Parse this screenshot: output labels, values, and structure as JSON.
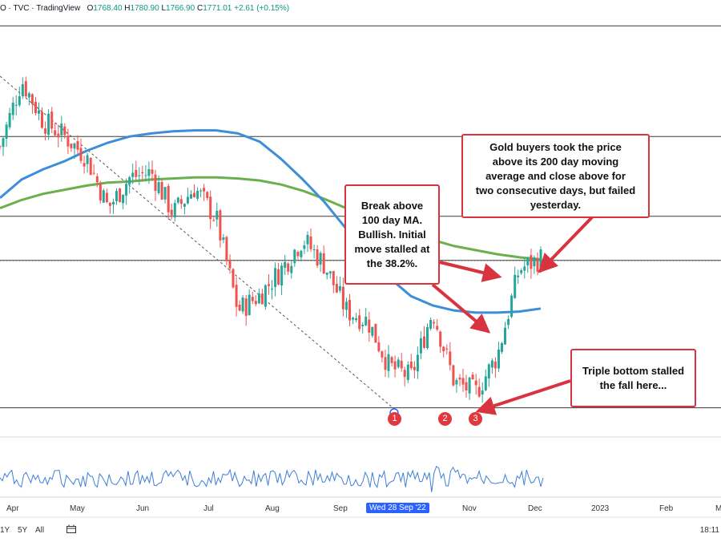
{
  "legend": {
    "prefix": "O · TVC · TradingView",
    "o_label": "O",
    "o_val": "1768.40",
    "h_label": "H",
    "h_val": "1780.90",
    "l_label": "L",
    "l_val": "1766.90",
    "c_label": "C",
    "c_val": "1771.01",
    "change": "+2.61 (+0.15%)"
  },
  "annotations": {
    "box1": [
      "Break above",
      "100 day MA.",
      "Bullish. Initial",
      "move stalled at",
      "the 38.2%."
    ],
    "box2": [
      "Gold buyers took the price",
      "above its 200 day moving",
      "average and close above for",
      "two consecutive days, but failed",
      "yesterday."
    ],
    "box3": [
      "Triple bottom stalled",
      "the fall here..."
    ],
    "markers": [
      "1",
      "2",
      "3"
    ]
  },
  "x_axis": {
    "labels": [
      "Apr",
      "May",
      "Jun",
      "Jul",
      "Aug",
      "Sep",
      "Nov",
      "Dec",
      "2023",
      "Feb",
      "M"
    ],
    "crosshair_label": "Wed 28 Sep '22"
  },
  "bottom_bar": {
    "range_1y": "1Y",
    "range_5y": "5Y",
    "range_all": "All",
    "clock": "18:11"
  },
  "colors": {
    "up": "#26a69a",
    "down": "#ef5350",
    "ma100": "#3d8ed9",
    "ma200": "#6ab04c",
    "annotation": "#d9333f",
    "oscillator": "#3d7fd6"
  },
  "chart_data": {
    "type": "candlestick",
    "series": [
      {
        "name": "100 day MA",
        "values": [
          1830,
          1848,
          1858,
          1866,
          1876,
          1884,
          1890,
          1893,
          1895,
          1896,
          1896,
          1893,
          1885,
          1868,
          1848,
          1826,
          1800,
          1776,
          1752,
          1734,
          1725,
          1720,
          1718,
          1718,
          1719,
          1722
        ]
      },
      {
        "name": "200 day MA",
        "values": [
          1820,
          1828,
          1834,
          1838,
          1842,
          1845,
          1846,
          1848,
          1849,
          1850,
          1850,
          1849,
          1847,
          1843,
          1837,
          1829,
          1820,
          1811,
          1802,
          1795,
          1789,
          1783,
          1779,
          1775,
          1772,
          1770
        ]
      },
      {
        "name": "price_close",
        "values": [
          1880,
          1945,
          1905,
          1890,
          1870,
          1820,
          1850,
          1855,
          1815,
          1840,
          1810,
          1720,
          1735,
          1760,
          1790,
          1765,
          1720,
          1710,
          1665,
          1655,
          1720,
          1650,
          1640,
          1676,
          1760,
          1771
        ]
      }
    ],
    "levels": [
      1998,
      1890,
      1812,
      1769,
      1625
    ]
  }
}
